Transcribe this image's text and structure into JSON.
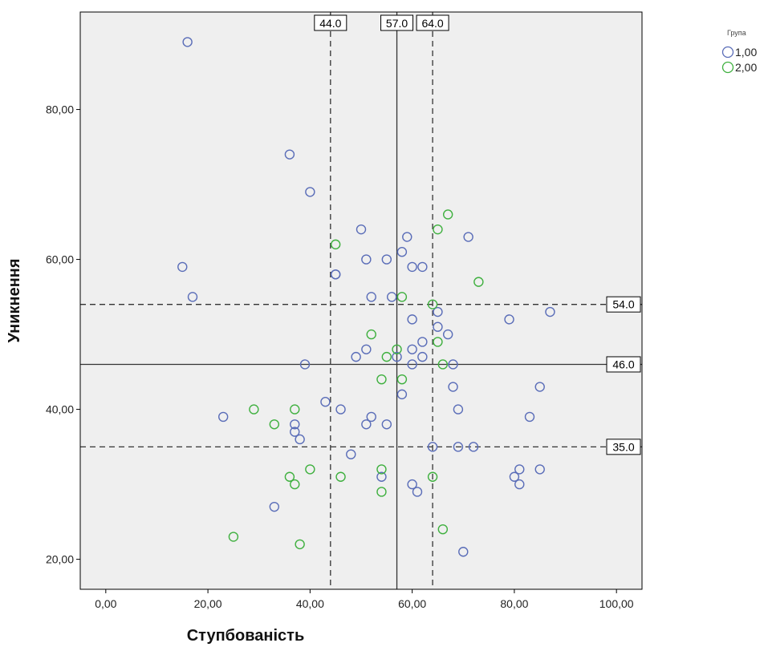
{
  "chart_data": {
    "type": "scatter",
    "xlabel": "Ступбованість",
    "ylabel": "Уникнення",
    "xlim": [
      -5,
      105
    ],
    "ylim": [
      16,
      93
    ],
    "xticks": [
      0,
      20,
      40,
      60,
      80,
      100
    ],
    "yticks": [
      20,
      40,
      60,
      80
    ],
    "xtick_labels": [
      "0,00",
      "20,00",
      "40,00",
      "60,00",
      "80,00",
      "100,00"
    ],
    "ytick_labels": [
      "20,00",
      "40,00",
      "60,00",
      "80,00"
    ],
    "grid": false,
    "background": "#efefef",
    "legend": {
      "title": "Група",
      "position": "top-right"
    },
    "reference_lines": {
      "vertical": [
        {
          "value": 44,
          "label": "44.0",
          "style": "dashed"
        },
        {
          "value": 57,
          "label": "57.0",
          "style": "solid"
        },
        {
          "value": 64,
          "label": "64.0",
          "style": "dashed"
        }
      ],
      "horizontal": [
        {
          "value": 54,
          "label": "54.0",
          "style": "dashed"
        },
        {
          "value": 46,
          "label": "46.0",
          "style": "solid"
        },
        {
          "value": 35,
          "label": "35.0",
          "style": "dashed"
        }
      ]
    },
    "series": [
      {
        "name": "1,00",
        "color": "#5a6db8",
        "points": [
          [
            16,
            89
          ],
          [
            36,
            74
          ],
          [
            40,
            69
          ],
          [
            15,
            59
          ],
          [
            17,
            55
          ],
          [
            39,
            46
          ],
          [
            23,
            39
          ],
          [
            33,
            27
          ],
          [
            37,
            38
          ],
          [
            37,
            37
          ],
          [
            38,
            36
          ],
          [
            43,
            41
          ],
          [
            46,
            40
          ],
          [
            48,
            34
          ],
          [
            45,
            58
          ],
          [
            45,
            58
          ],
          [
            50,
            64
          ],
          [
            51,
            60
          ],
          [
            52,
            55
          ],
          [
            49,
            47
          ],
          [
            51,
            48
          ],
          [
            52,
            39
          ],
          [
            51,
            38
          ],
          [
            54,
            31
          ],
          [
            55,
            60
          ],
          [
            55,
            38
          ],
          [
            56,
            55
          ],
          [
            57,
            47
          ],
          [
            58,
            61
          ],
          [
            59,
            63
          ],
          [
            58,
            42
          ],
          [
            60,
            59
          ],
          [
            62,
            59
          ],
          [
            60,
            52
          ],
          [
            60,
            48
          ],
          [
            60,
            46
          ],
          [
            62,
            49
          ],
          [
            62,
            47
          ],
          [
            60,
            30
          ],
          [
            61,
            29
          ],
          [
            64,
            35
          ],
          [
            65,
            53
          ],
          [
            65,
            51
          ],
          [
            67,
            50
          ],
          [
            68,
            46
          ],
          [
            68,
            43
          ],
          [
            69,
            40
          ],
          [
            69,
            35
          ],
          [
            72,
            35
          ],
          [
            71,
            63
          ],
          [
            70,
            21
          ],
          [
            79,
            52
          ],
          [
            80,
            31
          ],
          [
            81,
            32
          ],
          [
            81,
            30
          ],
          [
            83,
            39
          ],
          [
            85,
            43
          ],
          [
            85,
            32
          ],
          [
            87,
            53
          ]
        ]
      },
      {
        "name": "2,00",
        "color": "#3fb03f",
        "points": [
          [
            45,
            62
          ],
          [
            52,
            50
          ],
          [
            54,
            44
          ],
          [
            55,
            47
          ],
          [
            57,
            48
          ],
          [
            58,
            55
          ],
          [
            58,
            44
          ],
          [
            54,
            32
          ],
          [
            54,
            29
          ],
          [
            46,
            31
          ],
          [
            40,
            32
          ],
          [
            36,
            31
          ],
          [
            37,
            30
          ],
          [
            38,
            22
          ],
          [
            25,
            23
          ],
          [
            29,
            40
          ],
          [
            33,
            38
          ],
          [
            37,
            40
          ],
          [
            64,
            54
          ],
          [
            65,
            49
          ],
          [
            66,
            46
          ],
          [
            64,
            31
          ],
          [
            66,
            24
          ],
          [
            65,
            64
          ],
          [
            67,
            66
          ],
          [
            73,
            57
          ]
        ]
      }
    ]
  }
}
